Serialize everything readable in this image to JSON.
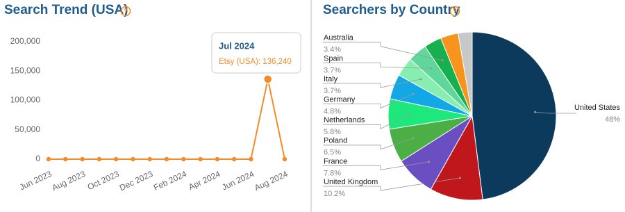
{
  "chart_data": [
    {
      "type": "line",
      "title": "Search Trend (USA)",
      "help": "?",
      "categories": [
        "Jun 2023",
        null,
        "Aug 2023",
        null,
        "Oct 2023",
        null,
        "Dec 2023",
        null,
        "Feb 2024",
        null,
        "Apr 2024",
        null,
        "Jun 2024",
        null,
        "Aug 2024"
      ],
      "series": [
        {
          "color": "#f28c28",
          "values": [
            0,
            0,
            0,
            0,
            0,
            0,
            0,
            0,
            0,
            0,
            0,
            0,
            0,
            136240,
            0
          ]
        }
      ],
      "ylim": [
        0,
        200000
      ],
      "yticks": [
        0,
        {
          "value": 50000,
          "label": "50,000"
        },
        {
          "value": 100000,
          "label": "100,000"
        },
        {
          "value": 150000,
          "label": "150,000"
        },
        {
          "value": 200000,
          "label": "200,000"
        }
      ],
      "tooltip": {
        "index": 13,
        "title": "Jul 2024",
        "text": "Etsy (USA): 136,240"
      }
    },
    {
      "type": "pie",
      "title": "Searchers by Country",
      "help": "?",
      "categories": [
        "United States",
        "United Kingdom",
        "France",
        "Poland",
        "Netherlands",
        "Germany",
        "Italy",
        "Spain",
        "Australia",
        null,
        null
      ],
      "values": [
        48,
        10.2,
        7.8,
        6.5,
        5.8,
        4.8,
        3.7,
        3.7,
        3.4,
        3.4,
        2.7
      ],
      "value_labels": [
        "48%",
        "10.2%",
        "7.8%",
        "6.5%",
        "5.8%",
        "4.8%",
        "3.7%",
        "3.7%",
        "3.4%",
        null,
        null
      ],
      "colors": [
        "#0b3a5d",
        "#c0171d",
        "#6a4fc2",
        "#4caf45",
        "#1de87c",
        "#12a8e6",
        "#86efb0",
        "#5fd69a",
        "#17b04f",
        "#f7941d",
        "#c8c8c8"
      ]
    }
  ]
}
